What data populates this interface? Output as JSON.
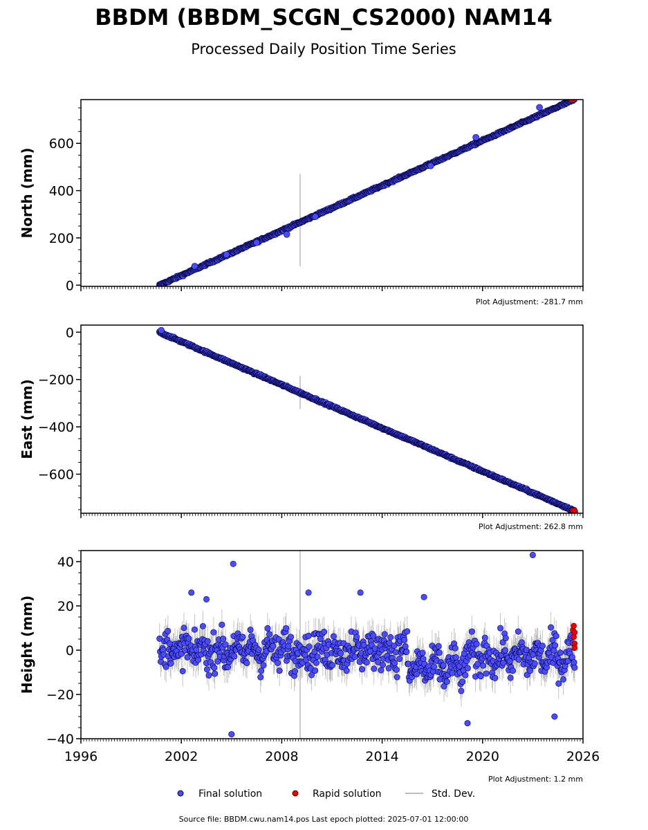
{
  "title": "BBDM (BBDM_SCGN_CS2000) NAM14",
  "subtitle": "Processed Daily Position Time Series",
  "source_note": "Source file: BBDM.cwu.nam14.pos  Last epoch plotted: 2025-07-01 12:00:00",
  "legend": {
    "final": "Final solution",
    "rapid": "Rapid solution",
    "std": "Std. Dev."
  },
  "colors": {
    "final": "#4b4bff",
    "rapid": "#ee0000",
    "std": "#bbbbbb",
    "edge": "#000033"
  },
  "x_ticks": [
    "1996",
    "2002",
    "2008",
    "2014",
    "2020",
    "2026"
  ],
  "chart_data": [
    {
      "type": "scatter",
      "ylabel": "North (mm)",
      "adjustment": "Plot Adjustment: -281.7 mm",
      "xlim": [
        1996,
        2026
      ],
      "ylim": [
        -5,
        785
      ],
      "yticks": [
        "0",
        "200",
        "400",
        "600"
      ],
      "ytick_values": [
        0,
        200,
        400,
        600
      ],
      "trend": {
        "x": [
          2000.7,
          2025.5
        ],
        "y": [
          0,
          786
        ]
      },
      "noise": 3,
      "outliers": [
        [
          2002.8,
          80
        ],
        [
          2004.7,
          130
        ],
        [
          2006.5,
          180
        ],
        [
          2008.3,
          215
        ],
        [
          2010.0,
          290
        ],
        [
          2016.9,
          505
        ],
        [
          2019.6,
          625
        ],
        [
          2023.4,
          752
        ]
      ],
      "std_spike": {
        "x": 2009.1,
        "y": [
          80,
          470
        ]
      },
      "rapid": [
        [
          2025.3,
          785
        ],
        [
          2025.5,
          788
        ]
      ]
    },
    {
      "type": "scatter",
      "ylabel": "East (mm)",
      "adjustment": "Plot Adjustment: 262.8 mm",
      "xlim": [
        1996,
        2026
      ],
      "ylim": [
        -765,
        30
      ],
      "yticks": [
        "0",
        "−200",
        "−400",
        "−600"
      ],
      "ytick_values": [
        0,
        -200,
        -400,
        -600
      ],
      "trend": {
        "x": [
          2000.7,
          2025.5
        ],
        "y": [
          0,
          -755
        ]
      },
      "noise": 3,
      "outliers": [
        [
          2000.8,
          8
        ]
      ],
      "std_spike": {
        "x": 2009.1,
        "y": [
          -325,
          -185
        ]
      },
      "rapid": [
        [
          2025.4,
          -753
        ],
        [
          2025.5,
          -755
        ]
      ]
    },
    {
      "type": "scatter",
      "ylabel": "Height (mm)",
      "adjustment": "Plot Adjustment: 1.2 mm",
      "xlim": [
        1996,
        2026
      ],
      "ylim": [
        -40,
        45
      ],
      "yticks": [
        "−40",
        "−20",
        "0",
        "20",
        "40"
      ],
      "ytick_values": [
        -40,
        -20,
        0,
        20,
        40
      ],
      "trend": {
        "x": [
          2000.7,
          2025.5
        ],
        "y": [
          0,
          0
        ]
      },
      "noise": 6,
      "outliers": [
        [
          2005.1,
          39
        ],
        [
          2005.0,
          -38
        ],
        [
          2009.6,
          26
        ],
        [
          2012.7,
          26
        ],
        [
          2016.5,
          24
        ],
        [
          2023.0,
          43
        ],
        [
          2019.1,
          -33
        ],
        [
          2024.3,
          -30
        ],
        [
          2002.6,
          26
        ],
        [
          2003.5,
          23
        ]
      ],
      "std_spike": {
        "x": 2009.1,
        "y": [
          -40,
          45
        ]
      },
      "rapid": [
        [
          2025.4,
          9
        ],
        [
          2025.45,
          6
        ],
        [
          2025.5,
          3
        ],
        [
          2025.5,
          1
        ],
        [
          2025.45,
          11
        ],
        [
          2025.5,
          8
        ]
      ]
    }
  ]
}
